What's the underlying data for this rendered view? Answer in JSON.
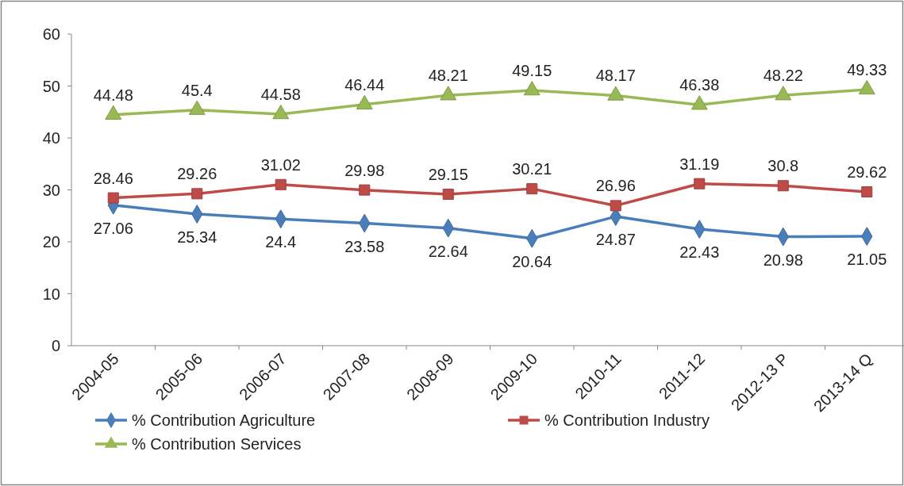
{
  "chart_data": {
    "type": "line",
    "categories": [
      "2004-05",
      "2005-06",
      "2006-07",
      "2007-08",
      "2008-09",
      "2009-10",
      "2010-11",
      "2011-12",
      "2012-13 P",
      "2013-14 Q"
    ],
    "series": [
      {
        "name": "% Contribution Agriculture",
        "color": "#4a7ebb",
        "marker": "diamond",
        "values": [
          27.06,
          25.34,
          24.4,
          23.58,
          22.64,
          20.64,
          24.87,
          22.43,
          20.98,
          21.05
        ]
      },
      {
        "name": "% Contribution Industry",
        "color": "#be4b48",
        "marker": "square",
        "values": [
          28.46,
          29.26,
          31.02,
          29.98,
          29.15,
          30.21,
          26.96,
          31.19,
          30.8,
          29.62
        ]
      },
      {
        "name": "% Contribution Services",
        "color": "#98b954",
        "marker": "triangle",
        "values": [
          44.48,
          45.4,
          44.58,
          46.44,
          48.21,
          49.15,
          48.17,
          46.38,
          48.22,
          49.33
        ]
      }
    ],
    "ylim": [
      0,
      60
    ],
    "yticks": [
      0,
      10,
      20,
      30,
      40,
      50,
      60
    ],
    "grid": false,
    "legend": "bottom",
    "data_labels": true,
    "line_style": "solid"
  }
}
